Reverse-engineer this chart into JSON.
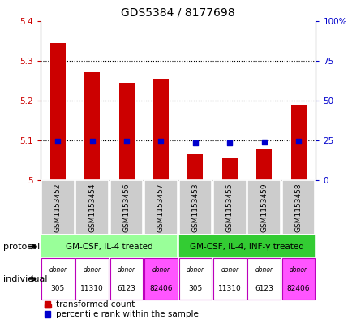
{
  "title": "GDS5384 / 8177698",
  "samples": [
    "GSM1153452",
    "GSM1153454",
    "GSM1153456",
    "GSM1153457",
    "GSM1153453",
    "GSM1153455",
    "GSM1153459",
    "GSM1153458"
  ],
  "transformed_count": [
    5.345,
    5.27,
    5.245,
    5.255,
    5.065,
    5.055,
    5.08,
    5.19
  ],
  "percentile_rank_pct": [
    24.5,
    24.5,
    24.5,
    24.5,
    23.5,
    23.5,
    24.0,
    24.5
  ],
  "bar_bottom": 5.0,
  "ylim_left": [
    5.0,
    5.4
  ],
  "ylim_right": [
    0,
    100
  ],
  "yticks_left": [
    5.0,
    5.1,
    5.2,
    5.3,
    5.4
  ],
  "ytick_labels_left": [
    "5",
    "5.1",
    "5.2",
    "5.3",
    "5.4"
  ],
  "yticks_right": [
    0,
    25,
    50,
    75,
    100
  ],
  "ytick_labels_right": [
    "0",
    "25",
    "50",
    "75",
    "100%"
  ],
  "bar_color": "#cc0000",
  "dot_color": "#0000cc",
  "bar_width": 0.45,
  "protocol_groups": [
    {
      "label": "GM-CSF, IL-4 treated",
      "start": 0,
      "end": 4,
      "color": "#99ff99"
    },
    {
      "label": "GM-CSF, IL-4, INF-γ treated",
      "start": 4,
      "end": 8,
      "color": "#33cc33"
    }
  ],
  "donors": [
    "305",
    "11310",
    "6123",
    "82406",
    "305",
    "11310",
    "6123",
    "82406"
  ],
  "donor_colors": [
    "#ffffff",
    "#ffffff",
    "#ffffff",
    "#ff55ff",
    "#ffffff",
    "#ffffff",
    "#ffffff",
    "#ff55ff"
  ],
  "donor_border_color": "#bb00bb",
  "sample_box_color": "#cccccc",
  "sample_box_border": "#aaaaaa",
  "left_ytick_color": "#cc0000",
  "right_ytick_color": "#0000cc",
  "legend_bar_color": "#cc0000",
  "legend_dot_color": "#0000cc",
  "title_fontsize": 10,
  "ytick_fontsize": 7.5,
  "sample_fontsize": 6.5,
  "proto_fontsize": 7.5,
  "donor_fontsize": 6.5,
  "donor_label_fontsize": 5.5,
  "legend_fontsize": 7.5,
  "side_label_fontsize": 8
}
